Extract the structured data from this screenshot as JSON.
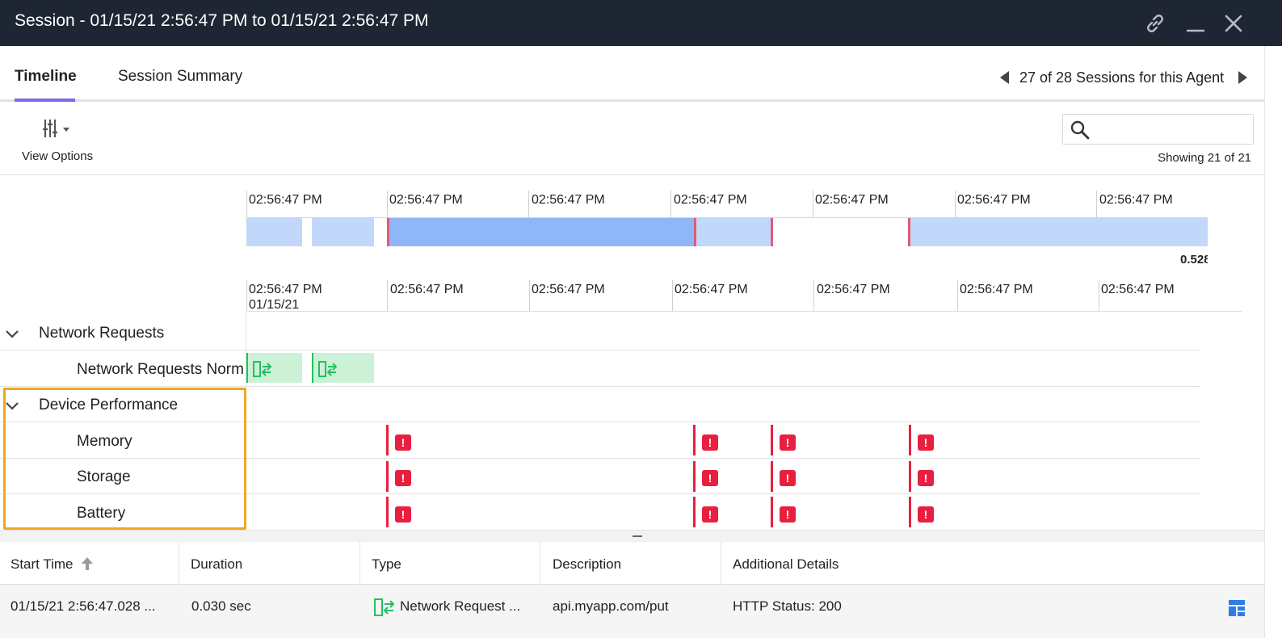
{
  "window": {
    "title": "Session - 01/15/21 2:56:47 PM to 01/15/21 2:56:47 PM",
    "icons": [
      "link-icon",
      "minimize-icon",
      "close-icon"
    ]
  },
  "tabs": [
    {
      "label": "Timeline",
      "active": true
    },
    {
      "label": "Session Summary",
      "active": false
    }
  ],
  "session_nav": {
    "label": "27 of 28 Sessions for this Agent"
  },
  "toolbar": {
    "view_options_label": "View Options",
    "search_placeholder": "",
    "showing_label": "Showing 21 of 21"
  },
  "overview": {
    "ticks": [
      "02:56:47 PM",
      "02:56:47 PM",
      "02:56:47 PM",
      "02:56:47 PM",
      "02:56:47 PM",
      "02:56:47 PM",
      "02:56:47 PM"
    ],
    "value_label": "0.528"
  },
  "detail": {
    "ticks": [
      "02:56:47 PM",
      "02:56:47 PM",
      "02:56:47 PM",
      "02:56:47 PM",
      "02:56:47 PM",
      "02:56:47 PM",
      "02:56:47 PM"
    ],
    "first_date": "01/15/21"
  },
  "groups": [
    {
      "label": "Network Requests",
      "children": [
        "Network Requests Norm"
      ]
    },
    {
      "label": "Device Performance",
      "children": [
        "Memory",
        "Storage",
        "Battery"
      ]
    }
  ],
  "error_marker": "!",
  "grid": {
    "columns": [
      "Start Time",
      "Duration",
      "Type",
      "Description",
      "Additional Details"
    ],
    "rows": [
      {
        "start_time": "01/15/21 2:56:47.028 ...",
        "duration": "0.030 sec",
        "type": "Network Request ...",
        "description": "api.myapp.com/put",
        "details": "HTTP Status: 200"
      }
    ]
  },
  "colors": {
    "titlebar": "#1e2633",
    "tab_accent": "#7b68ee",
    "network_bar": "#cbf2d7",
    "network_accent": "#23c15f",
    "error": "#e8203f",
    "highlight": "#f4a521",
    "overview_light": "#c2d8fb",
    "overview_dark": "#8fb6f7"
  }
}
